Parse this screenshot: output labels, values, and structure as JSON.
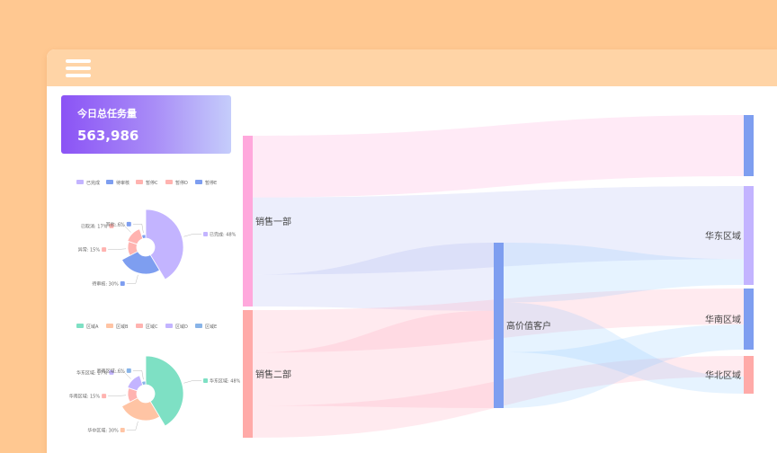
{
  "toolbar": {
    "menu_icon": "hamburger-menu-icon"
  },
  "stat": {
    "title": "今日总任务量",
    "value": "563,986"
  },
  "colors": {
    "background": "#ffc891",
    "topbar": "#ffd4a6",
    "card_gradient": [
      "#8b53f5",
      "#c5cdfb"
    ],
    "pie1": [
      "#c3b4ff",
      "#7e9ef0",
      "#ffb3b0",
      "#ffb3b0",
      "#7e9ef0"
    ],
    "pie2": [
      "#7ee0c4",
      "#ffc4a4",
      "#ffb3b0",
      "#c3b4ff",
      "#88b4e8"
    ]
  },
  "chart_data": [
    {
      "type": "pie",
      "legend": [
        "已完成",
        "待审核",
        "暂停C",
        "暂停D",
        "暂停E"
      ],
      "slices": [
        {
          "name": "已完成",
          "value": 48,
          "label": "已完成: 48%"
        },
        {
          "name": "待审核",
          "value": 30,
          "label": "待审核: 30%"
        },
        {
          "name": "异常",
          "value": 15,
          "label": "异常: 15%"
        },
        {
          "name": "已取消",
          "value": 17,
          "label": "已取消: 17%"
        },
        {
          "name": "其他",
          "value": 6,
          "label": "其他: 6%"
        }
      ]
    },
    {
      "type": "pie",
      "legend": [
        "区域A",
        "区域B",
        "区域C",
        "区域D",
        "区域E"
      ],
      "slices": [
        {
          "name": "华东区域",
          "value": 48,
          "label": "华东区域: 48%"
        },
        {
          "name": "华中区域",
          "value": 30,
          "label": "华中区域: 30%"
        },
        {
          "name": "华南区域",
          "value": 15,
          "label": "华南区域: 15%"
        },
        {
          "name": "华东区域",
          "value": 17,
          "label": "华东区域: 17%"
        },
        {
          "name": "西南区域",
          "value": 6,
          "label": "西南区域: 6%"
        }
      ]
    },
    {
      "type": "sankey",
      "nodes": [
        {
          "id": "s1",
          "name": "销售一部",
          "color": "#ffa8dc"
        },
        {
          "id": "s2",
          "name": "销售二部",
          "color": "#ffaaa8"
        },
        {
          "id": "hv",
          "name": "高价值客户",
          "color": "#7e9ef0"
        },
        {
          "id": "t0",
          "name": "",
          "color": "#7e9ef0"
        },
        {
          "id": "east",
          "name": "华东区域",
          "color": "#c3b4ff"
        },
        {
          "id": "south",
          "name": "华南区域",
          "color": "#7e9ef0"
        },
        {
          "id": "north",
          "name": "华北区域",
          "color": "#ffaaa8"
        }
      ],
      "links": [
        {
          "source": "s1",
          "target": "t0",
          "value": 68
        },
        {
          "source": "s1",
          "target": "east",
          "value": 85
        },
        {
          "source": "s1",
          "target": "hv",
          "value": 35
        },
        {
          "source": "s2",
          "target": "south",
          "value": 40
        },
        {
          "source": "s2",
          "target": "hv",
          "value": 50
        },
        {
          "source": "s2",
          "target": "north",
          "value": 30
        },
        {
          "source": "hv",
          "target": "east",
          "value": 30
        },
        {
          "source": "hv",
          "target": "north",
          "value": 25
        },
        {
          "source": "hv",
          "target": "south",
          "value": 28
        }
      ]
    }
  ]
}
